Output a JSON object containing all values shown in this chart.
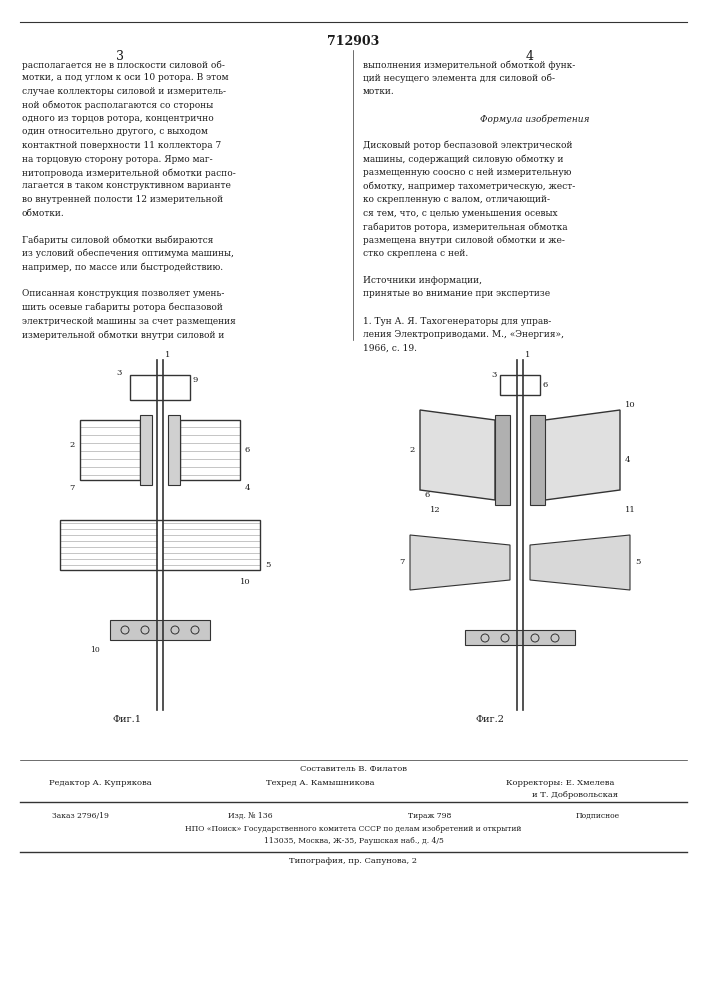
{
  "page_number": "712903",
  "col_left_number": "3",
  "col_right_number": "4",
  "background_color": "#ffffff",
  "text_color": "#1a1a1a",
  "line_color": "#333333",
  "left_col_text": [
    "располагается не в плоскости силовой об-",
    "мотки, а под углом к оси 10 ротора. В этом",
    "случае коллекторы силовой и измеритель-",
    "ной обмоток располагаются со стороны",
    "одного из торцов ротора, концентрично",
    "один относительно другого, с выходом",
    "контактной поверхности 11 коллектора 7",
    "на торцовую сторону ротора. Ярмо маг-",
    "нитопровода измерительной обмотки распо-",
    "лагается в таком конструктивном варианте",
    "во внутренней полости 12 измерительной",
    "обмотки.",
    "",
    "Габариты силовой обмотки выбираются",
    "из условий обеспечения оптимума машины,",
    "например, по массе или быстродействию.",
    "",
    "Описанная конструкция позволяет умень-",
    "шить осевые габариты ротора беспазовой",
    "электрической машины за счет размещения",
    "измерительной обмотки внутри силовой и"
  ],
  "right_col_text": [
    "выполнения измерительной обмоткой функ-",
    "ций несущего элемента для силовой об-",
    "мотки.",
    "",
    "Формула изобретения",
    "",
    "Дисковый ротор беспазовой электрической",
    "машины, содержащий силовую обмотку и",
    "размещенную соосно с ней измерительную",
    "обмотку, например тахометрическую, жест-",
    "ко скрепленную с валом, отличающий-",
    "ся тем, что, с целью уменьшения осевых",
    "габаритов ротора, измерительная обмотка",
    "размещена внутри силовой обмотки и же-",
    "стко скреплена с ней.",
    "",
    "Источники информации,",
    "принятые во внимание при экспертизе",
    "",
    "1. Тун А. Я. Тахогенераторы для управ-",
    "ления Электроприводами. М., «Энергия»,",
    "1966, с. 19."
  ],
  "formula_title": "Формула изобретения",
  "fig1_label": "Фиг.1",
  "fig2_label": "Фиг.2",
  "footer_composer": "Составитель В. Филатов",
  "footer_editor": "Редактор А. Купрякова",
  "footer_tech": "Техред А. Камышникова",
  "footer_correctors": "Корректоры: Е. Хмелева",
  "footer_correctors2": "и Т. Добровольская",
  "footer_order": "Заказ 2796/19",
  "footer_izd": "Изд. № 136",
  "footer_tirazh": "Тираж 798",
  "footer_podpisnoe": "Подписное",
  "footer_nio": "НПО «Поиск» Государственного комитета СССР по делам изобретений и открытий",
  "footer_address": "113035, Москва, Ж-35, Раушская наб., д. 4/5",
  "footer_tipografia": "Типография, пр. Сапунова, 2"
}
